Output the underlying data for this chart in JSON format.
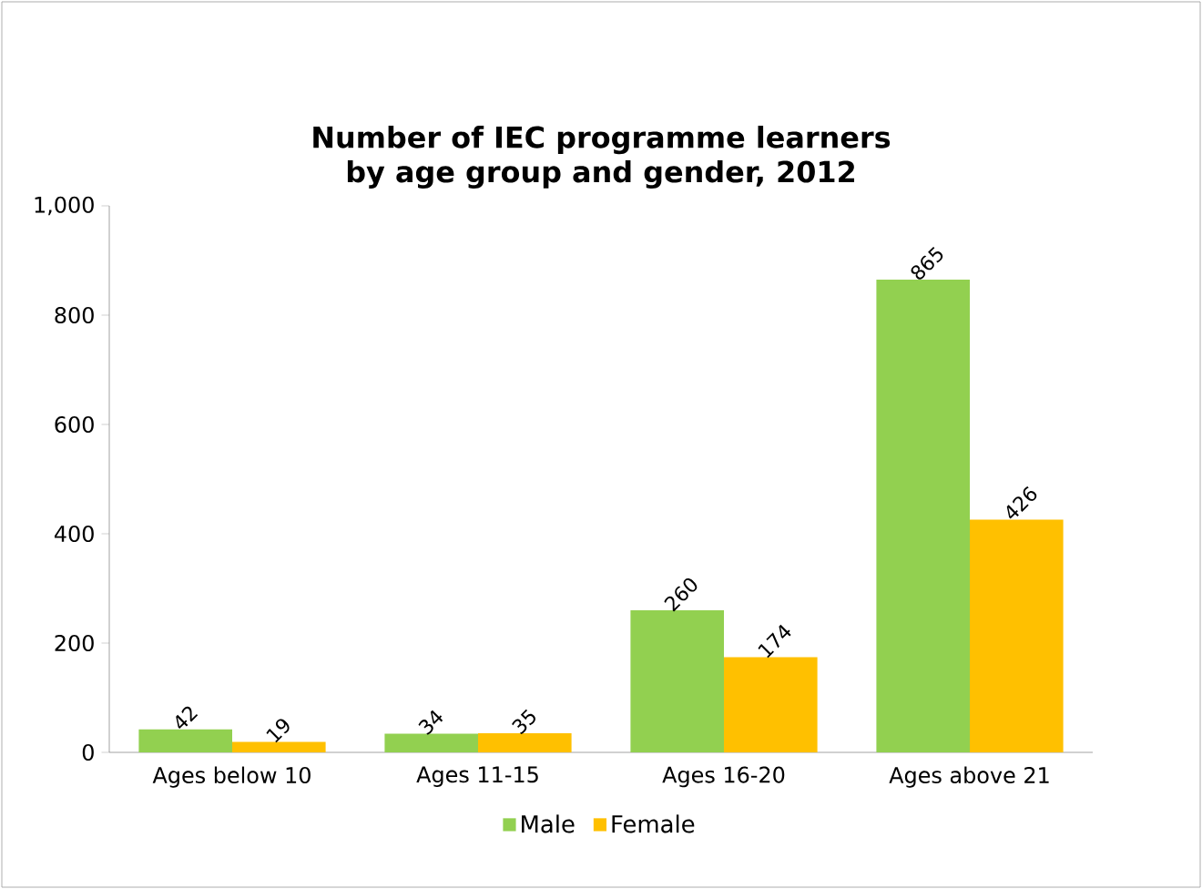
{
  "chart_data": {
    "type": "bar",
    "title": "Number of IEC programme learners\nby age group and gender, 2012",
    "categories": [
      "Ages below 10",
      "Ages 11-15",
      "Ages 16-20",
      "Ages above 21"
    ],
    "series": [
      {
        "name": "Male",
        "color": "#92d050",
        "values": [
          42,
          34,
          260,
          865
        ]
      },
      {
        "name": "Female",
        "color": "#ffc000",
        "values": [
          19,
          35,
          174,
          426
        ]
      }
    ],
    "ylim": [
      0,
      1000
    ],
    "yticks": [
      0,
      200,
      400,
      600,
      800,
      {
        "value": 1000,
        "label": "1,000"
      }
    ],
    "data_labels": true,
    "legend": "bottom",
    "grid": false
  }
}
